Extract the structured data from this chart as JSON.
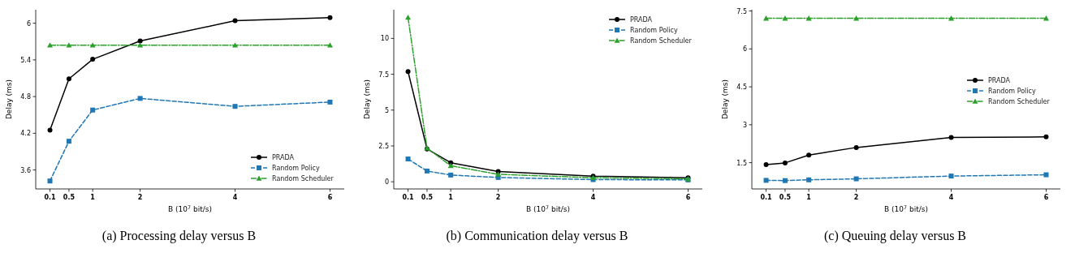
{
  "chart_data": [
    {
      "type": "line",
      "title": "(a) Processing delay versus B",
      "xlabel": "B (10$^{7}$ bit/s)",
      "ylabel": "Delay (ms)",
      "x": [
        0.1,
        0.5,
        1,
        2,
        4,
        6
      ],
      "xlim": [
        -0.2,
        6.3
      ],
      "xticks": [
        0.1,
        0.5,
        1,
        2,
        4,
        6
      ],
      "ylim": [
        3.29,
        6.22
      ],
      "yticks": [
        3.6,
        4.2,
        4.8,
        5.4,
        6
      ],
      "legend": "bottom right",
      "grid": false,
      "series": [
        {
          "name": "PRADA",
          "color": "#000000",
          "marker": "circle",
          "line_style": "solid",
          "values": [
            4.25,
            5.09,
            5.41,
            5.71,
            6.04,
            6.09
          ]
        },
        {
          "name": "Random Policy",
          "color": "#1f77b4",
          "marker": "square",
          "line_style": "dashed",
          "values": [
            3.42,
            4.07,
            4.58,
            4.77,
            4.64,
            4.71
          ]
        },
        {
          "name": "Random Scheduler",
          "color": "#2ca02c",
          "marker": "triangle",
          "line_style": "dashdot",
          "values": [
            5.64,
            5.64,
            5.64,
            5.64,
            5.64,
            5.64
          ]
        }
      ]
    },
    {
      "type": "line",
      "title": "(b) Communication delay versus B",
      "xlabel": "B (10$^{7}$ bit/s)",
      "ylabel": "Delay (ms)",
      "x": [
        0.1,
        0.5,
        1,
        2,
        4,
        6
      ],
      "xlim": [
        -0.2,
        6.3
      ],
      "xticks": [
        0.1,
        0.5,
        1,
        2,
        4,
        6
      ],
      "ylim": [
        -0.5,
        12
      ],
      "yticks": [
        0,
        2.5,
        5,
        7.5,
        10
      ],
      "legend": "top right",
      "grid": false,
      "series": [
        {
          "name": "PRADA",
          "color": "#000000",
          "marker": "circle",
          "line_style": "solid",
          "values": [
            7.69,
            2.29,
            1.33,
            0.71,
            0.39,
            0.28
          ]
        },
        {
          "name": "Random Policy",
          "color": "#1f77b4",
          "marker": "square",
          "line_style": "dashed",
          "values": [
            1.59,
            0.75,
            0.47,
            0.3,
            0.15,
            0.13
          ]
        },
        {
          "name": "Random Scheduler",
          "color": "#2ca02c",
          "marker": "triangle",
          "line_style": "dashdot",
          "values": [
            11.46,
            2.35,
            1.12,
            0.52,
            0.28,
            0.2
          ]
        }
      ]
    },
    {
      "type": "line",
      "title": "(c) Queuing delay versus B",
      "xlabel": "B (10$^{7}$ bit/s)",
      "ylabel": "Delay (ms)",
      "x": [
        0.1,
        0.5,
        1,
        2,
        4,
        6
      ],
      "xlim": [
        -0.2,
        6.3
      ],
      "xticks": [
        0.1,
        0.5,
        1,
        2,
        4,
        6
      ],
      "ylim": [
        0.46,
        7.55
      ],
      "yticks": [
        1.5,
        3,
        4.5,
        6,
        7.5
      ],
      "legend": "right",
      "grid": false,
      "series": [
        {
          "name": "PRADA",
          "color": "#000000",
          "marker": "circle",
          "line_style": "solid",
          "values": [
            1.42,
            1.49,
            1.8,
            2.1,
            2.5,
            2.52
          ]
        },
        {
          "name": "Random Policy",
          "color": "#1f77b4",
          "marker": "square",
          "line_style": "dashed",
          "values": [
            0.8,
            0.79,
            0.82,
            0.86,
            0.97,
            1.02
          ]
        },
        {
          "name": "Random Scheduler",
          "color": "#2ca02c",
          "marker": "triangle",
          "line_style": "dashdot",
          "values": [
            7.21,
            7.21,
            7.21,
            7.21,
            7.21,
            7.21
          ]
        }
      ]
    }
  ]
}
